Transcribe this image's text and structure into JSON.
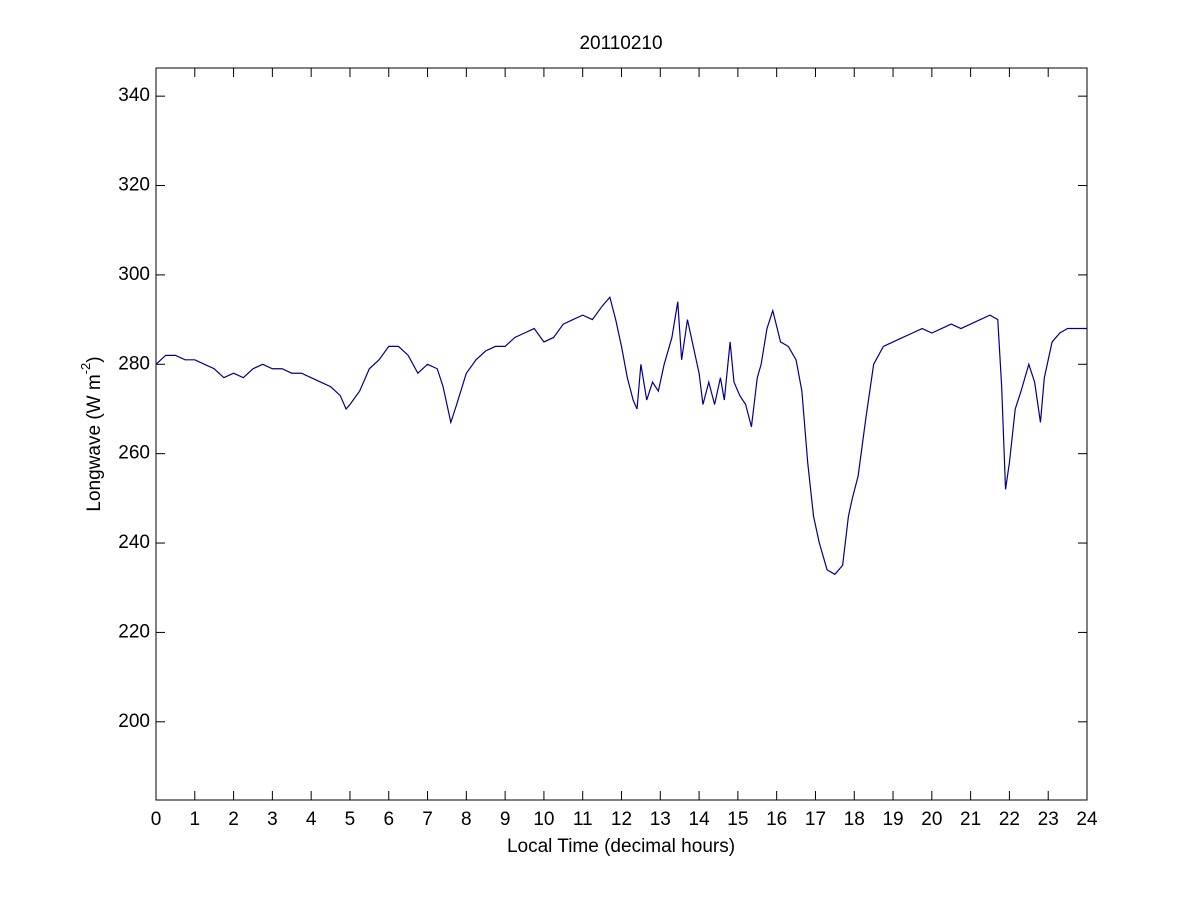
{
  "chart_data": {
    "type": "line",
    "title": "20110210",
    "x_label": "Local Time (decimal hours)",
    "y_label": {
      "text": "Longwave (W m",
      "superscript": "-2",
      "suffix": ")"
    },
    "x": [
      0,
      0.25,
      0.5,
      0.75,
      1.0,
      1.25,
      1.5,
      1.75,
      2.0,
      2.25,
      2.5,
      2.75,
      3.0,
      3.25,
      3.5,
      3.75,
      4.0,
      4.25,
      4.5,
      4.75,
      4.9,
      5.0,
      5.25,
      5.5,
      5.75,
      6.0,
      6.25,
      6.5,
      6.75,
      7.0,
      7.25,
      7.4,
      7.6,
      7.75,
      8.0,
      8.25,
      8.5,
      8.75,
      9.0,
      9.25,
      9.5,
      9.75,
      10.0,
      10.25,
      10.5,
      10.75,
      11.0,
      11.25,
      11.5,
      11.7,
      11.85,
      12.0,
      12.15,
      12.3,
      12.4,
      12.5,
      12.65,
      12.8,
      12.95,
      13.1,
      13.3,
      13.45,
      13.55,
      13.7,
      13.85,
      14.0,
      14.1,
      14.25,
      14.4,
      14.55,
      14.65,
      14.8,
      14.9,
      15.05,
      15.2,
      15.35,
      15.5,
      15.6,
      15.75,
      15.9,
      16.1,
      16.3,
      16.5,
      16.65,
      16.8,
      16.95,
      17.1,
      17.3,
      17.5,
      17.7,
      17.85,
      17.95,
      18.1,
      18.3,
      18.5,
      18.75,
      19.0,
      19.25,
      19.5,
      19.75,
      20.0,
      20.25,
      20.5,
      20.75,
      21.0,
      21.25,
      21.5,
      21.7,
      21.8,
      21.9,
      22.0,
      22.15,
      22.3,
      22.5,
      22.65,
      22.8,
      22.9,
      23.1,
      23.3,
      23.5,
      23.75,
      24.0
    ],
    "series": [
      {
        "name": "Longwave",
        "color": "#00008b",
        "values": [
          280,
          282,
          282,
          281,
          281,
          280,
          279,
          277,
          278,
          277,
          279,
          280,
          279,
          279,
          278,
          278,
          277,
          276,
          275,
          273,
          270,
          271,
          274,
          279,
          281,
          284,
          284,
          282,
          278,
          280,
          279,
          275,
          267,
          271,
          278,
          281,
          283,
          284,
          284,
          286,
          287,
          288,
          285,
          286,
          289,
          290,
          291,
          290,
          293,
          295,
          290,
          284,
          277,
          272,
          270,
          280,
          272,
          276,
          274,
          280,
          286,
          294,
          281,
          290,
          284,
          278,
          271,
          276,
          271,
          277,
          272,
          285,
          276,
          273,
          271,
          266,
          277,
          280,
          288,
          292,
          285,
          284,
          281,
          274,
          258,
          246,
          240,
          234,
          233,
          235,
          246,
          250,
          255,
          268,
          280,
          284,
          285,
          286,
          287,
          288,
          287,
          288,
          289,
          288,
          289,
          290,
          291,
          290,
          275,
          252,
          258,
          270,
          274,
          280,
          276,
          267,
          277,
          285,
          287,
          288,
          288,
          288
        ]
      }
    ],
    "xlim": [
      0,
      24
    ],
    "ylim": [
      182.5,
      346.3
    ],
    "xticks": [
      0,
      1,
      2,
      3,
      4,
      5,
      6,
      7,
      8,
      9,
      10,
      11,
      12,
      13,
      14,
      15,
      16,
      17,
      18,
      19,
      20,
      21,
      22,
      23,
      24
    ],
    "yticks": [
      200,
      220,
      240,
      260,
      280,
      300,
      320,
      340
    ],
    "grid": false
  }
}
